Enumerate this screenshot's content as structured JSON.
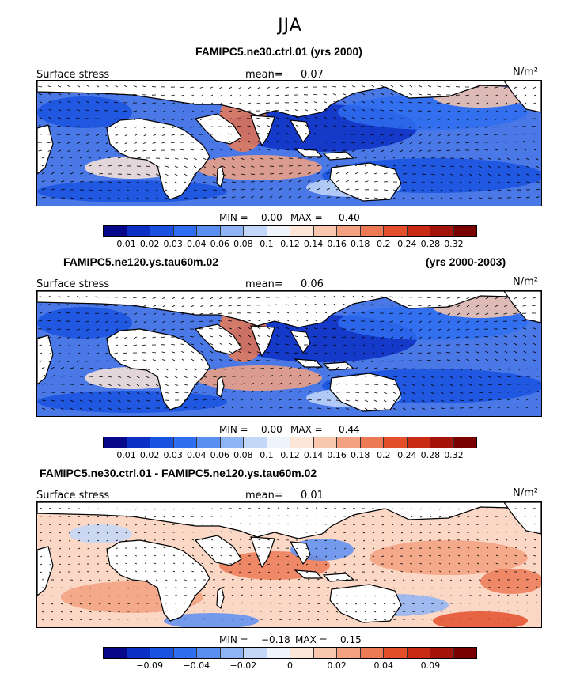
{
  "season_title": "JJA",
  "unit": "N/m²",
  "field_label": "Surface stress",
  "colors": {
    "abs_scale": [
      "#08088a",
      "#0c2fc4",
      "#1a52e0",
      "#2f6ef0",
      "#5a8ff2",
      "#8fb4f5",
      "#c3d7f9",
      "#eef3fc",
      "#fde6d8",
      "#f8c7ad",
      "#f3a180",
      "#ec7a55",
      "#e34f2a",
      "#c92b14",
      "#a4140a",
      "#7a0000"
    ],
    "diff_scale": [
      "#08088a",
      "#0c2fc4",
      "#1a52e0",
      "#2f6ef0",
      "#5a8ff2",
      "#8fb4f5",
      "#c3d7f9",
      "#eef3fc",
      "#fde6d8",
      "#f8c7ad",
      "#f3a180",
      "#ec7a55",
      "#e34f2a",
      "#c92b14",
      "#a4140a",
      "#7a0000"
    ],
    "ocean_base": "#4a78e6",
    "diff_base": "#fbd7c6",
    "land": "#ffffff"
  },
  "panels": [
    {
      "title": "FAMIPC5.ne30.ctrl.01 (yrs 2000)",
      "title_right": "",
      "mean_label": "mean=",
      "mean_value": "0.07",
      "min_label": "MIN =",
      "min_value": "0.00",
      "max_label": "MAX =",
      "max_value": "0.40",
      "ticks": [
        "0.01",
        "0.02",
        "0.03",
        "0.04",
        "0.06",
        "0.08",
        "0.1",
        "0.12",
        "0.14",
        "0.16",
        "0.18",
        "0.2",
        "0.24",
        "0.28",
        "0.32"
      ],
      "kind": "abs"
    },
    {
      "title": "FAMIPC5.ne120.ys.tau60m.02",
      "title_right": "(yrs 2000-2003)",
      "mean_label": "mean=",
      "mean_value": "0.06",
      "min_label": "MIN =",
      "min_value": "0.00",
      "max_label": "MAX =",
      "max_value": "0.44",
      "ticks": [
        "0.01",
        "0.02",
        "0.03",
        "0.04",
        "0.06",
        "0.08",
        "0.1",
        "0.12",
        "0.14",
        "0.16",
        "0.18",
        "0.2",
        "0.24",
        "0.28",
        "0.32"
      ],
      "kind": "abs"
    },
    {
      "title": "FAMIPC5.ne30.ctrl.01 - FAMIPC5.ne120.ys.tau60m.02",
      "title_right": "",
      "mean_label": "mean=",
      "mean_value": "0.01",
      "min_label": "MIN =",
      "min_value": "−0.18",
      "max_label": "MAX =",
      "max_value": "0.15",
      "ticks": [
        "",
        "−0.09",
        "",
        "−0.04",
        "",
        "−0.02",
        "",
        "0",
        "",
        "0.02",
        "",
        "0.04",
        "",
        "0.09",
        ""
      ],
      "kind": "diff"
    }
  ]
}
